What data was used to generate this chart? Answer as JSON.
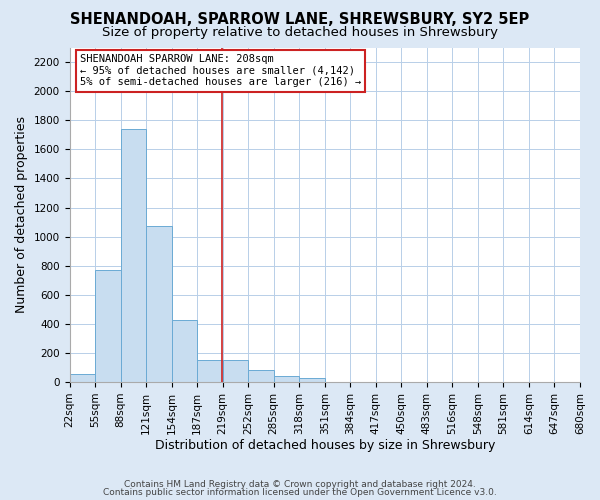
{
  "title": "SHENANDOAH, SPARROW LANE, SHREWSBURY, SY2 5EP",
  "subtitle": "Size of property relative to detached houses in Shrewsbury",
  "xlabel": "Distribution of detached houses by size in Shrewsbury",
  "ylabel": "Number of detached properties",
  "bar_color": "#c8ddf0",
  "bar_edge_color": "#6baad4",
  "bins": [
    "22sqm",
    "55sqm",
    "88sqm",
    "121sqm",
    "154sqm",
    "187sqm",
    "219sqm",
    "252sqm",
    "285sqm",
    "318sqm",
    "351sqm",
    "384sqm",
    "417sqm",
    "450sqm",
    "483sqm",
    "516sqm",
    "548sqm",
    "581sqm",
    "614sqm",
    "647sqm",
    "680sqm"
  ],
  "values": [
    55,
    770,
    1740,
    1070,
    430,
    155,
    155,
    80,
    40,
    25,
    0,
    0,
    0,
    0,
    0,
    0,
    0,
    0,
    0,
    0
  ],
  "ylim": [
    0,
    2300
  ],
  "yticks": [
    0,
    200,
    400,
    600,
    800,
    1000,
    1200,
    1400,
    1600,
    1800,
    2000,
    2200
  ],
  "annotation_title": "SHENANDOAH SPARROW LANE: 208sqm",
  "annotation_line1": "← 95% of detached houses are smaller (4,142)",
  "annotation_line2": "5% of semi-detached houses are larger (216) →",
  "property_line_x": 5.48,
  "footer1": "Contains HM Land Registry data © Crown copyright and database right 2024.",
  "footer2": "Contains public sector information licensed under the Open Government Licence v3.0.",
  "background_color": "#dce8f5",
  "plot_bg_color": "#ffffff",
  "grid_color": "#b8cfe8",
  "title_fontsize": 10.5,
  "subtitle_fontsize": 9.5,
  "axis_label_fontsize": 9,
  "tick_fontsize": 7.5,
  "footer_fontsize": 6.5
}
